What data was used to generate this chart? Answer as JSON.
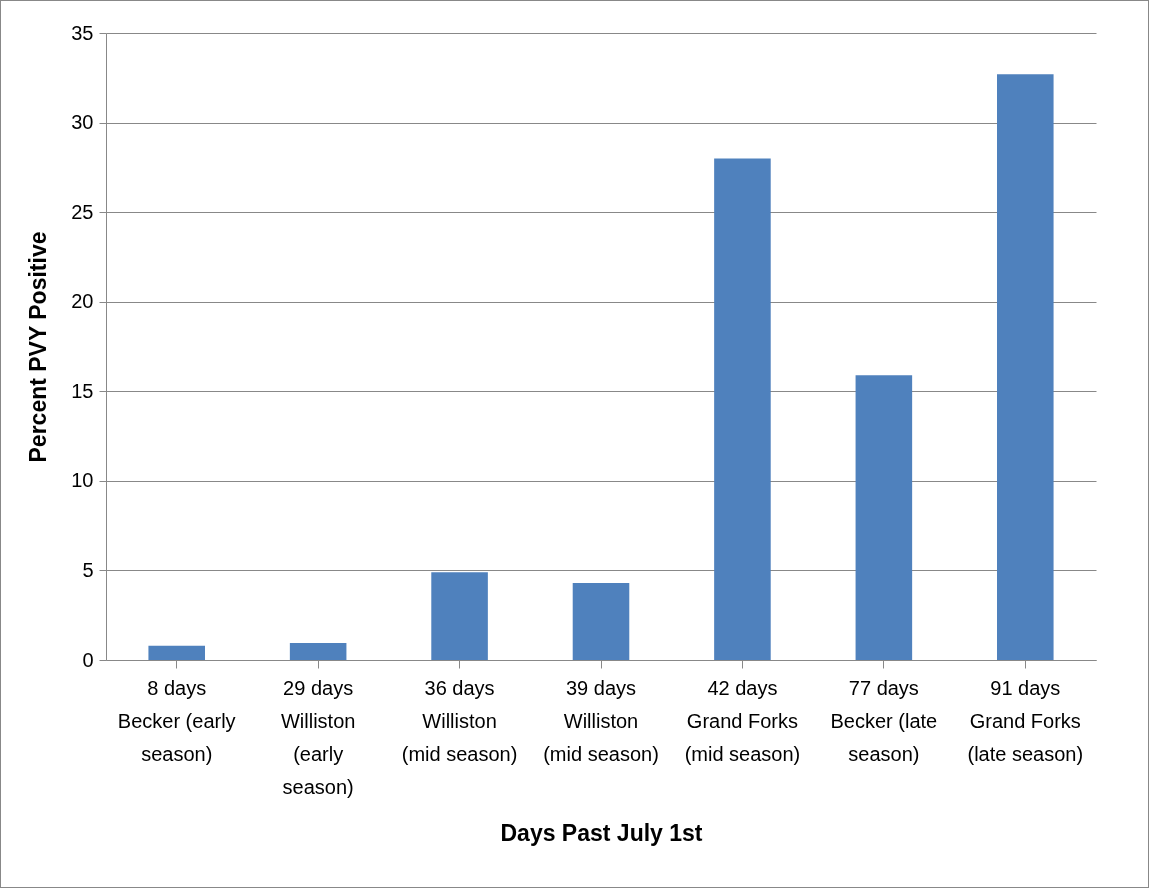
{
  "chart_data": {
    "type": "bar",
    "xlabel": "Days  Past July 1st",
    "ylabel": "Percent PVY Positive",
    "categories": [
      "8 days\nBecker (early\nseason)",
      "29 days\nWilliston\n(early\nseason)",
      "36 days\nWilliston\n(mid season)",
      "39 days\nWilliston\n(mid season)",
      "42 days\nGrand Forks\n(mid season)",
      "77 days\nBecker (late\nseason)",
      "91 days\nGrand Forks\n(late season)"
    ],
    "values": [
      0.8,
      0.95,
      4.9,
      4.3,
      28.0,
      15.9,
      32.7
    ],
    "color": "#4f81bd",
    "ylim": [
      0,
      35
    ],
    "yticks": [
      0,
      5,
      10,
      15,
      20,
      25,
      30,
      35
    ],
    "grid": "y"
  }
}
